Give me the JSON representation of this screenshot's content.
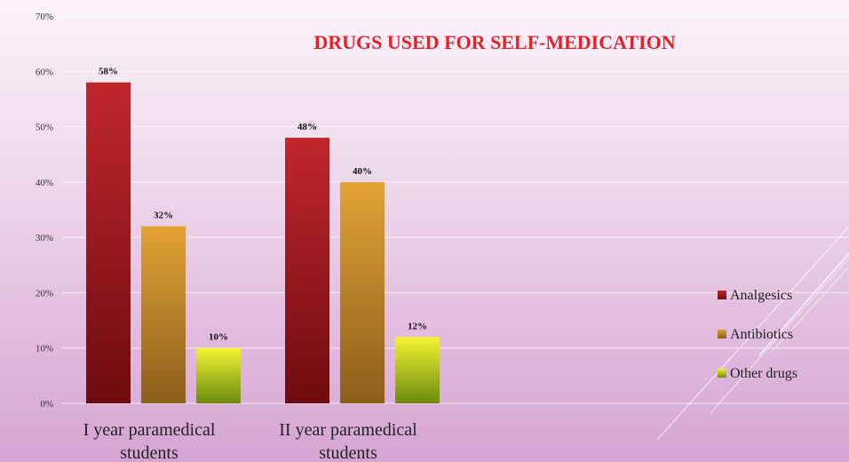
{
  "chart_data": {
    "type": "bar",
    "title": "DRUGS USED FOR SELF-MEDICATION",
    "title_color": "#e8202a",
    "categories": [
      "I year paramedical students",
      "II year paramedical students"
    ],
    "category_lines": [
      [
        "I year paramedical",
        "students"
      ],
      [
        "II year paramedical",
        "students"
      ]
    ],
    "series": [
      {
        "name": "Analgesics",
        "values": [
          58,
          48
        ],
        "labels": [
          "58%",
          "48%"
        ],
        "color_top": "#c0272d",
        "color_bottom": "#6e0b10"
      },
      {
        "name": "Antibiotics",
        "values": [
          32,
          40
        ],
        "labels": [
          "32%",
          "40%"
        ],
        "color_top": "#e3a235",
        "color_bottom": "#8b5e1c"
      },
      {
        "name": "Other drugs",
        "values": [
          10,
          12
        ],
        "labels": [
          "10%",
          "12%"
        ],
        "color_top": "#f2f531",
        "color_bottom": "#6d8a0e"
      }
    ],
    "ylim": [
      0,
      70
    ],
    "yticks": [
      0,
      10,
      20,
      30,
      40,
      50,
      60,
      70
    ],
    "ytick_labels": [
      "0%",
      "10%",
      "20%",
      "30%",
      "40%",
      "50%",
      "60%",
      "70%"
    ],
    "xlabel": "",
    "ylabel": "",
    "grid": true,
    "legend_position": "right"
  }
}
